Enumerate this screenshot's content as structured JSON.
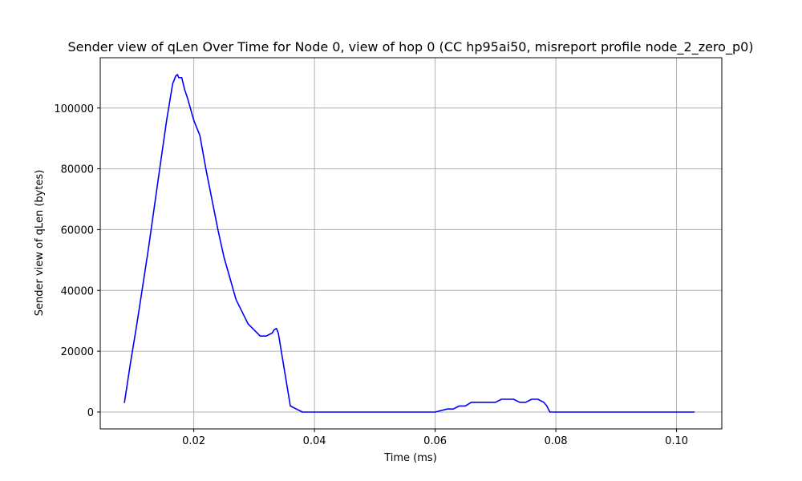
{
  "chart_data": {
    "type": "line",
    "title": "Sender view of qLen Over Time for Node 0, view of hop 0 (CC hp95ai50, misreport profile node_2_zero_p0)",
    "xlabel": "Time (ms)",
    "ylabel": "Sender view of qLen (bytes)",
    "xlim": [
      0.0045,
      0.1075
    ],
    "ylim": [
      -5550,
      116550
    ],
    "xticks": [
      0.02,
      0.04,
      0.06,
      0.08,
      0.1
    ],
    "xtick_labels": [
      "0.02",
      "0.04",
      "0.06",
      "0.08",
      "0.10"
    ],
    "yticks": [
      0,
      20000,
      40000,
      60000,
      80000,
      100000
    ],
    "ytick_labels": [
      "0",
      "20000",
      "40000",
      "60000",
      "80000",
      "100000"
    ],
    "grid": true,
    "legend": "none",
    "series": [
      {
        "color": "#0000ff",
        "x": [
          0.0085,
          0.0095,
          0.0105,
          0.0115,
          0.0125,
          0.0135,
          0.0145,
          0.0155,
          0.0165,
          0.017,
          0.0173,
          0.0175,
          0.018,
          0.0185,
          0.019,
          0.02,
          0.021,
          0.022,
          0.023,
          0.024,
          0.025,
          0.026,
          0.027,
          0.028,
          0.029,
          0.03,
          0.031,
          0.032,
          0.033,
          0.0333,
          0.0337,
          0.034,
          0.035,
          0.036,
          0.038,
          0.04,
          0.05,
          0.06,
          0.062,
          0.063,
          0.064,
          0.065,
          0.066,
          0.068,
          0.07,
          0.071,
          0.072,
          0.073,
          0.074,
          0.075,
          0.076,
          0.077,
          0.078,
          0.0785,
          0.079,
          0.08,
          0.09,
          0.1,
          0.103
        ],
        "y": [
          3000,
          16000,
          28000,
          41000,
          54000,
          68000,
          82000,
          96000,
          108000,
          110500,
          111000,
          110000,
          110000,
          106000,
          103000,
          96000,
          91000,
          80000,
          70000,
          60000,
          51000,
          44000,
          37000,
          33000,
          29000,
          27000,
          25000,
          25000,
          26000,
          27000,
          27500,
          26000,
          14000,
          2000,
          0,
          0,
          0,
          0,
          1000,
          1000,
          2000,
          2000,
          3200,
          3200,
          3200,
          4200,
          4200,
          4200,
          3200,
          3200,
          4200,
          4200,
          3200,
          2000,
          0,
          0,
          0,
          0,
          0
        ]
      }
    ]
  }
}
